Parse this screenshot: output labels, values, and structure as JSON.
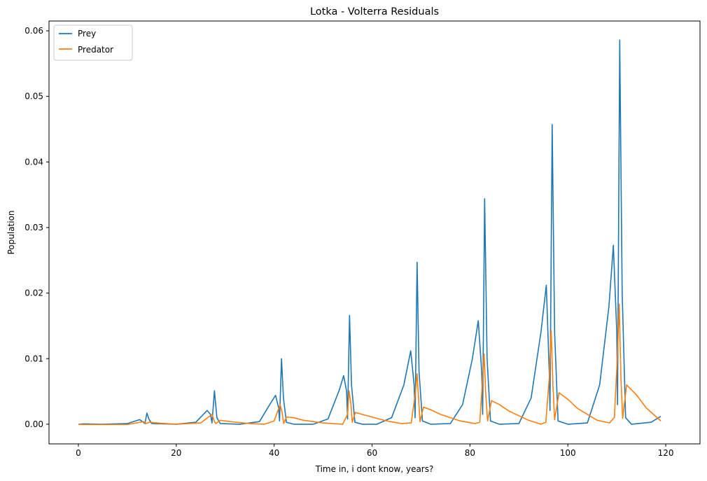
{
  "chart_data": {
    "type": "line",
    "title": "Lotka - Volterra Residuals",
    "xlabel": "Time in, i dont know, years?",
    "ylabel": "Population",
    "xlim": [
      -6,
      127
    ],
    "ylim": [
      -0.003,
      0.0615
    ],
    "xticks": [
      "0",
      "20",
      "40",
      "60",
      "80",
      "100",
      "120"
    ],
    "xtick_values": [
      0,
      20,
      40,
      60,
      80,
      100,
      120
    ],
    "yticks": [
      "0.00",
      "0.01",
      "0.02",
      "0.03",
      "0.04",
      "0.05",
      "0.06"
    ],
    "ytick_values": [
      0,
      0.01,
      0.02,
      0.03,
      0.04,
      0.05,
      0.06
    ],
    "grid": false,
    "legend_position": "top-left",
    "series": [
      {
        "name": "Prey",
        "color": "#1f77b4",
        "points": [
          [
            0,
            0
          ],
          [
            1,
            5e-05
          ],
          [
            5,
            0
          ],
          [
            10,
            0.0001
          ],
          [
            12.5,
            0.0007
          ],
          [
            13.3,
            0.0003
          ],
          [
            13.6,
            0.0001
          ],
          [
            14,
            0.0017
          ],
          [
            14.4,
            0.0008
          ],
          [
            15,
            0.0001
          ],
          [
            20,
            0
          ],
          [
            24,
            0.0003
          ],
          [
            26.3,
            0.0021
          ],
          [
            27,
            0.0015
          ],
          [
            27.3,
            0.0002
          ],
          [
            27.8,
            0.0051
          ],
          [
            28.3,
            0.001
          ],
          [
            29,
            0.0001
          ],
          [
            33,
            0
          ],
          [
            37,
            0.0004
          ],
          [
            39.5,
            0.0035
          ],
          [
            40.3,
            0.0044
          ],
          [
            40.9,
            0.0025
          ],
          [
            41.1,
            0.0005
          ],
          [
            41.5,
            0.01
          ],
          [
            41.9,
            0.004
          ],
          [
            42.5,
            0.0003
          ],
          [
            44,
            0
          ],
          [
            48,
            0
          ],
          [
            51,
            0.0008
          ],
          [
            53.3,
            0.0052
          ],
          [
            54.2,
            0.0074
          ],
          [
            54.8,
            0.005
          ],
          [
            55,
            0.0008
          ],
          [
            55.4,
            0.0166
          ],
          [
            55.8,
            0.006
          ],
          [
            56.5,
            0.0003
          ],
          [
            58,
            0
          ],
          [
            61,
            0
          ],
          [
            64,
            0.001
          ],
          [
            66.5,
            0.006
          ],
          [
            67.9,
            0.0112
          ],
          [
            68.6,
            0.006
          ],
          [
            68.8,
            0.001
          ],
          [
            69.2,
            0.0247
          ],
          [
            69.6,
            0.008
          ],
          [
            70.3,
            0.0005
          ],
          [
            72,
            0
          ],
          [
            76,
            0.0001
          ],
          [
            78.5,
            0.003
          ],
          [
            80.5,
            0.01
          ],
          [
            81.7,
            0.0158
          ],
          [
            82.4,
            0.008
          ],
          [
            82.6,
            0.0015
          ],
          [
            83,
            0.0344
          ],
          [
            83.5,
            0.01
          ],
          [
            84.2,
            0.0005
          ],
          [
            86,
            0
          ],
          [
            90,
            0.0001
          ],
          [
            92.5,
            0.004
          ],
          [
            94.5,
            0.014
          ],
          [
            95.6,
            0.0212
          ],
          [
            96.2,
            0.008
          ],
          [
            96.35,
            0.0021
          ],
          [
            96.8,
            0.0457
          ],
          [
            97.3,
            0.014
          ],
          [
            98,
            0.0005
          ],
          [
            100,
            0
          ],
          [
            104,
            0.0002
          ],
          [
            106.5,
            0.006
          ],
          [
            108.4,
            0.018
          ],
          [
            109.3,
            0.0273
          ],
          [
            110,
            0.014
          ],
          [
            110.15,
            0.003
          ],
          [
            110.6,
            0.0586
          ],
          [
            111.1,
            0.02
          ],
          [
            111.8,
            0.001
          ],
          [
            113,
            0
          ],
          [
            117,
            0.0003
          ],
          [
            119,
            0.0012
          ]
        ]
      },
      {
        "name": "Predator",
        "color": "#ff7f0e",
        "points": [
          [
            0,
            0
          ],
          [
            1,
            -5e-05
          ],
          [
            10,
            -5e-05
          ],
          [
            13.3,
            0.0004
          ],
          [
            13.8,
            0.0001
          ],
          [
            14.5,
            0.0003
          ],
          [
            16,
            0.0002
          ],
          [
            20,
            0
          ],
          [
            25,
            0.0002
          ],
          [
            27.3,
            0.0015
          ],
          [
            27.8,
            0.0004
          ],
          [
            28.1,
            0.0001
          ],
          [
            29,
            0.0006
          ],
          [
            31,
            0.0004
          ],
          [
            35,
            0.0001
          ],
          [
            38,
            0
          ],
          [
            40,
            0.0005
          ],
          [
            41.2,
            0.003
          ],
          [
            41.6,
            0.0019
          ],
          [
            41.95,
            0.0001
          ],
          [
            42.5,
            0.0011
          ],
          [
            44,
            0.001
          ],
          [
            46,
            0.0006
          ],
          [
            50,
            0.0002
          ],
          [
            54,
            0
          ],
          [
            55,
            0.0015
          ],
          [
            55.3,
            0.0051
          ],
          [
            55.7,
            0.003
          ],
          [
            55.95,
            0.0003
          ],
          [
            56.6,
            0.0018
          ],
          [
            58,
            0.0015
          ],
          [
            60,
            0.0011
          ],
          [
            63,
            0.0005
          ],
          [
            66,
            0.0001
          ],
          [
            68,
            0.0002
          ],
          [
            68.8,
            0.0045
          ],
          [
            69.2,
            0.0077
          ],
          [
            69.5,
            0.004
          ],
          [
            69.8,
            0.0004
          ],
          [
            70.5,
            0.0026
          ],
          [
            72,
            0.0022
          ],
          [
            74,
            0.0015
          ],
          [
            78,
            0.0005
          ],
          [
            81,
            0.0001
          ],
          [
            82,
            0.0003
          ],
          [
            82.6,
            0.007
          ],
          [
            82.9,
            0.0107
          ],
          [
            83.2,
            0.005
          ],
          [
            83.6,
            0.0005
          ],
          [
            84.4,
            0.0036
          ],
          [
            86,
            0.003
          ],
          [
            88,
            0.002
          ],
          [
            92,
            0.0006
          ],
          [
            94.5,
            0
          ],
          [
            95.5,
            0.0003
          ],
          [
            96.2,
            0.007
          ],
          [
            96.6,
            0.0143
          ],
          [
            96.95,
            0.006
          ],
          [
            97.3,
            0.0007
          ],
          [
            98.2,
            0.0048
          ],
          [
            100,
            0.0038
          ],
          [
            102,
            0.0024
          ],
          [
            106,
            0.0006
          ],
          [
            108.5,
            0.0002
          ],
          [
            109.5,
            0.001
          ],
          [
            110.1,
            0.01
          ],
          [
            110.5,
            0.0183
          ],
          [
            110.85,
            0.007
          ],
          [
            111.2,
            0.0009
          ],
          [
            112,
            0.006
          ],
          [
            114,
            0.0045
          ],
          [
            116,
            0.0025
          ],
          [
            119,
            0.0005
          ]
        ]
      }
    ]
  }
}
